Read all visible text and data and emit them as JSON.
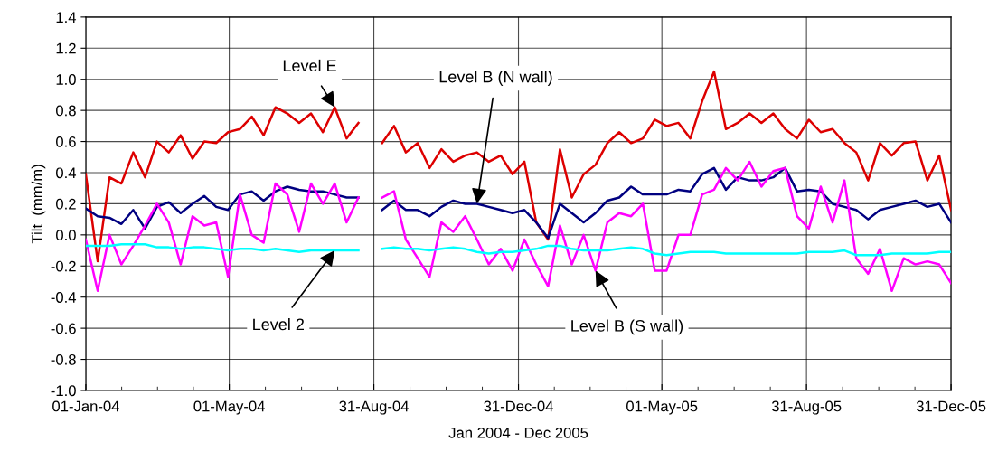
{
  "chart_data": {
    "type": "line",
    "xlabel": "Jan 2004 - Dec 2005",
    "ylabel": "Tilt  (mm/m)",
    "x": [
      "2004-01-01",
      "2004-01-11",
      "2004-01-21",
      "2004-01-31",
      "2004-02-10",
      "2004-02-20",
      "2004-03-01",
      "2004-03-11",
      "2004-03-21",
      "2004-03-31",
      "2004-04-10",
      "2004-04-20",
      "2004-04-30",
      "2004-05-10",
      "2004-05-20",
      "2004-05-30",
      "2004-06-09",
      "2004-06-19",
      "2004-06-29",
      "2004-07-09",
      "2004-07-19",
      "2004-07-29",
      "2004-08-08",
      "2004-08-18",
      "2004-08-28",
      "2004-09-07",
      "2004-09-17",
      "2004-09-27",
      "2004-10-07",
      "2004-10-17",
      "2004-10-27",
      "2004-11-06",
      "2004-11-16",
      "2004-11-26",
      "2004-12-06",
      "2004-12-16",
      "2004-12-26",
      "2005-01-05",
      "2005-01-15",
      "2005-01-25",
      "2005-02-04",
      "2005-02-14",
      "2005-02-24",
      "2005-03-06",
      "2005-03-16",
      "2005-03-26",
      "2005-04-05",
      "2005-04-15",
      "2005-04-25",
      "2005-05-05",
      "2005-05-15",
      "2005-05-25",
      "2005-06-04",
      "2005-06-14",
      "2005-06-24",
      "2005-07-04",
      "2005-07-14",
      "2005-07-24",
      "2005-08-03",
      "2005-08-13",
      "2005-08-23",
      "2005-09-02",
      "2005-09-12",
      "2005-09-22",
      "2005-10-02",
      "2005-10-12",
      "2005-10-22",
      "2005-11-01",
      "2005-11-11",
      "2005-11-21",
      "2005-12-01",
      "2005-12-11",
      "2005-12-21",
      "2005-12-31"
    ],
    "series": [
      {
        "color": "#dd0000",
        "values": [
          0.39,
          -0.17,
          0.37,
          0.33,
          0.53,
          0.37,
          0.6,
          0.53,
          0.64,
          0.49,
          0.6,
          0.59,
          0.66,
          0.68,
          0.76,
          0.64,
          0.82,
          0.78,
          0.72,
          0.78,
          0.66,
          0.82,
          0.62,
          0.72,
          null,
          0.59,
          0.7,
          0.53,
          0.59,
          0.43,
          0.55,
          0.47,
          0.51,
          0.53,
          0.47,
          0.51,
          0.39,
          0.47,
          0.08,
          -0.03,
          0.55,
          0.24,
          0.39,
          0.45,
          0.59,
          0.66,
          0.59,
          0.62,
          0.74,
          0.7,
          0.72,
          0.62,
          0.86,
          1.05,
          0.68,
          0.72,
          0.78,
          0.72,
          0.78,
          0.68,
          0.62,
          0.74,
          0.66,
          0.68,
          0.59,
          0.53,
          0.35,
          0.59,
          0.51,
          0.59,
          0.6,
          0.35,
          0.51,
          0.16
        ]
      },
      {
        "color": "#000080",
        "values": [
          0.17,
          0.12,
          0.11,
          0.07,
          0.16,
          0.04,
          0.18,
          0.21,
          0.14,
          0.2,
          0.25,
          0.18,
          0.16,
          0.26,
          0.28,
          0.22,
          0.28,
          0.31,
          0.29,
          0.28,
          0.28,
          0.26,
          0.24,
          0.24,
          null,
          0.16,
          0.22,
          0.16,
          0.16,
          0.12,
          0.18,
          0.22,
          0.2,
          0.2,
          0.18,
          0.16,
          0.14,
          0.16,
          0.08,
          -0.02,
          0.2,
          0.14,
          0.08,
          0.14,
          0.22,
          0.24,
          0.31,
          0.26,
          0.26,
          0.26,
          0.29,
          0.28,
          0.39,
          0.43,
          0.29,
          0.37,
          0.35,
          0.35,
          0.37,
          0.43,
          0.28,
          0.29,
          0.28,
          0.2,
          0.18,
          0.16,
          0.1,
          0.16,
          0.18,
          0.2,
          0.22,
          0.18,
          0.2,
          0.08
        ]
      },
      {
        "color": "#ff00ff",
        "values": [
          -0.03,
          -0.36,
          0.0,
          -0.19,
          -0.07,
          0.06,
          0.2,
          0.08,
          -0.19,
          0.12,
          0.06,
          0.08,
          -0.27,
          0.26,
          0.0,
          -0.05,
          0.33,
          0.26,
          0.02,
          0.33,
          0.2,
          0.33,
          0.08,
          0.24,
          null,
          0.24,
          0.28,
          -0.03,
          -0.15,
          -0.27,
          0.08,
          0.02,
          0.12,
          -0.03,
          -0.19,
          -0.09,
          -0.23,
          -0.03,
          -0.19,
          -0.33,
          0.06,
          -0.19,
          0.0,
          -0.23,
          0.08,
          0.14,
          0.12,
          0.2,
          -0.23,
          -0.23,
          0.0,
          0.0,
          0.26,
          0.29,
          0.43,
          0.35,
          0.47,
          0.31,
          0.41,
          0.43,
          0.12,
          0.04,
          0.31,
          0.08,
          0.35,
          -0.15,
          -0.25,
          -0.09,
          -0.36,
          -0.15,
          -0.19,
          -0.17,
          -0.19,
          -0.31
        ]
      },
      {
        "color": "#00ffff",
        "values": [
          -0.07,
          -0.07,
          -0.07,
          -0.06,
          -0.06,
          -0.06,
          -0.08,
          -0.08,
          -0.09,
          -0.08,
          -0.08,
          -0.09,
          -0.1,
          -0.09,
          -0.09,
          -0.1,
          -0.09,
          -0.1,
          -0.11,
          -0.1,
          -0.1,
          -0.1,
          -0.1,
          -0.1,
          null,
          -0.09,
          -0.08,
          -0.09,
          -0.09,
          -0.1,
          -0.09,
          -0.08,
          -0.09,
          -0.11,
          -0.12,
          -0.11,
          -0.11,
          -0.1,
          -0.09,
          -0.07,
          -0.07,
          -0.09,
          -0.1,
          -0.1,
          -0.1,
          -0.09,
          -0.08,
          -0.09,
          -0.12,
          -0.13,
          -0.12,
          -0.11,
          -0.11,
          -0.11,
          -0.12,
          -0.12,
          -0.12,
          -0.12,
          -0.12,
          -0.12,
          -0.12,
          -0.11,
          -0.11,
          -0.11,
          -0.1,
          -0.13,
          -0.13,
          -0.13,
          -0.12,
          -0.12,
          -0.12,
          -0.12,
          -0.11,
          -0.11
        ]
      }
    ],
    "xlim": [
      "2004-01-01",
      "2005-12-31"
    ],
    "xticks": [
      {
        "value": "2004-01-01",
        "label": "01-Jan-04"
      },
      {
        "value": "2004-05-01",
        "label": "01-May-04"
      },
      {
        "value": "2004-08-31",
        "label": "31-Aug-04"
      },
      {
        "value": "2004-12-31",
        "label": "31-Dec-04"
      },
      {
        "value": "2005-05-01",
        "label": "01-May-05"
      },
      {
        "value": "2005-08-31",
        "label": "31-Aug-05"
      },
      {
        "value": "2005-12-31",
        "label": "31-Dec-05"
      }
    ],
    "ylim": [
      -1.0,
      1.4
    ],
    "yticks": [
      {
        "value": -1.0,
        "label": "-1.0"
      },
      {
        "value": -0.8,
        "label": "-0.8"
      },
      {
        "value": -0.6,
        "label": "-0.6"
      },
      {
        "value": -0.4,
        "label": "-0.4"
      },
      {
        "value": -0.2,
        "label": "-0.2"
      },
      {
        "value": 0,
        "label": "0.0"
      },
      {
        "value": 0.2,
        "label": "0.2"
      },
      {
        "value": 0.4,
        "label": "0.4"
      },
      {
        "value": 0.6,
        "label": "0.6"
      },
      {
        "value": 0.8,
        "label": "0.8"
      },
      {
        "value": 1.0,
        "label": "1.0"
      },
      {
        "value": 1.2,
        "label": "1.2"
      },
      {
        "value": 1.4,
        "label": "1.4"
      }
    ],
    "grid": true,
    "marker": "none",
    "line_style": "solid",
    "annotations": [
      {
        "text": "Level E",
        "x": "2004-07-29",
        "y": 0.82
      },
      {
        "text": "Level B (N wall)",
        "x": "2004-11-26",
        "y": 0.2
      },
      {
        "text": "Level 2",
        "x": "2004-07-29",
        "y": -0.1
      },
      {
        "text": "Level B (S wall)",
        "x": "2005-03-06",
        "y": -0.23
      }
    ]
  }
}
